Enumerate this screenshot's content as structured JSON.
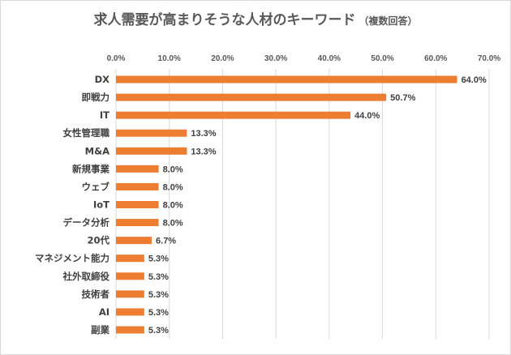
{
  "chart_data": {
    "type": "bar",
    "orientation": "horizontal",
    "title": "求人需要が高まりそうな人材のキーワード",
    "subtitle": "（複数回答）",
    "categories": [
      "DX",
      "即戦力",
      "IT",
      "女性管理職",
      "M&A",
      "新規事業",
      "ウェブ",
      "IoT",
      "データ分析",
      "20代",
      "マネジメント能力",
      "社外取締役",
      "技術者",
      "AI",
      "副業"
    ],
    "values": [
      64.0,
      50.7,
      44.0,
      13.3,
      13.3,
      8.0,
      8.0,
      8.0,
      8.0,
      6.7,
      5.3,
      5.3,
      5.3,
      5.3,
      5.3
    ],
    "data_labels": [
      "64.0%",
      "50.7%",
      "44.0%",
      "13.3%",
      "13.3%",
      "8.0%",
      "8.0%",
      "8.0%",
      "8.0%",
      "6.7%",
      "5.3%",
      "5.3%",
      "5.3%",
      "5.3%",
      "5.3%"
    ],
    "xlim": [
      0,
      70
    ],
    "x_ticks": [
      "0.0%",
      "10.0%",
      "20.0%",
      "30.0%",
      "40.0%",
      "50.0%",
      "60.0%",
      "70.0%"
    ],
    "x_axis_position": "top",
    "grid": true,
    "legend": "none",
    "bar_color": "#ED7D31",
    "grid_color": "#d9d9d9"
  }
}
